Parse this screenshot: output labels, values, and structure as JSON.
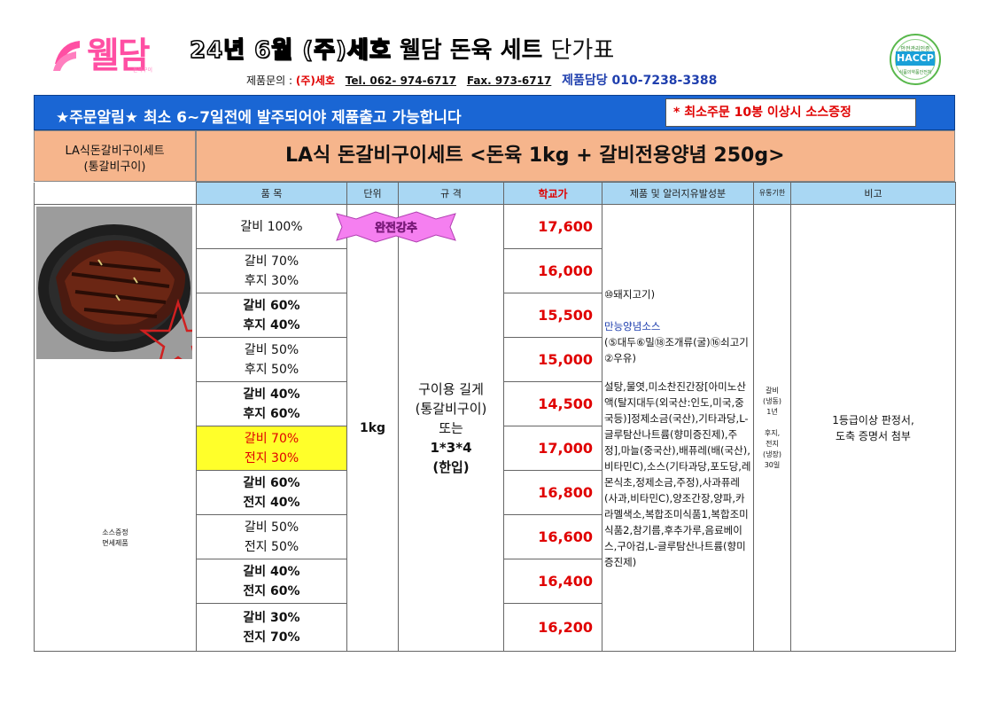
{
  "header": {
    "logo_text": "웰담",
    "logo_sub": "돈육구이",
    "title_brush": "24년 6월 (주)세호",
    "title_main": "웰담 돈육 세트",
    "title_light": "단가표",
    "contact_label": "제품문의 :",
    "contact_company": "(주)세호",
    "contact_tel": "Tel. 062- 974-6717",
    "contact_fax": "Fax. 973-6717",
    "contact_manager": "제품담당  010-7238-3388",
    "haccp_top": "안전관리인증",
    "haccp_label": "HACCP",
    "haccp_bottom": "식품의약품안전처"
  },
  "notice": {
    "text": "★주문알림★ 최소 6~7일전에 발주되어야 제품출고 가능합니다",
    "box": "* 최소주문 10봉 이상시 소스증정"
  },
  "product": {
    "left_line1": "LA식돈갈비구이세트",
    "left_line2": "(통갈비구이)",
    "title": "LA식 돈갈비구이세트 <돈육 1kg + 갈비전용양념 250g>"
  },
  "columns": {
    "item": "품    목",
    "unit": "단위",
    "spec": "규    격",
    "price": "학교가",
    "ingredients": "제품 및 알러지유발성분",
    "expiry": "유통기한",
    "note": "비고"
  },
  "badge": "완전강추",
  "rows": [
    {
      "l1": "갈비 100%",
      "l2": "",
      "price": "17,600"
    },
    {
      "l1": "갈비 70%",
      "l2": "후지 30%",
      "price": "16,000"
    },
    {
      "l1": "갈비 60%",
      "l2": "후지 40%",
      "price": "15,500"
    },
    {
      "l1": "갈비 50%",
      "l2": "후지 50%",
      "price": "15,000"
    },
    {
      "l1": "갈비 40%",
      "l2": "후지 60%",
      "price": "14,500"
    },
    {
      "l1": "갈비 70%",
      "l2": "전지 30%",
      "price": "17,000"
    },
    {
      "l1": "갈비 60%",
      "l2": "전지 40%",
      "price": "16,800"
    },
    {
      "l1": "갈비 50%",
      "l2": "전지 50%",
      "price": "16,600"
    },
    {
      "l1": "갈비 40%",
      "l2": "전지 60%",
      "price": "16,400"
    },
    {
      "l1": "갈비 30%",
      "l2": "전지 70%",
      "price": "16,200"
    }
  ],
  "unit": "1kg",
  "spec": {
    "l1": "구이용 길게",
    "l2": "(통갈비구이)",
    "l3": "또는",
    "l4": "1*3*4",
    "l5": "(한입)"
  },
  "ingredients": {
    "meat": "⑩돼지고기)",
    "sauce_title": "만능양념소스",
    "allergens": "(⑤대두⑥밀⑱조개류(굴)⑯쇠고기②우유)",
    "list": "설탕,물엿,미소찬진간장[아미노산액(탈지대두(외국산:인도,미국,중국등)]정제소금(국산),기타과당,L-글루탐산나트륨(향미증진제),주정],마늘(중국산),배퓨레(배(국산),비타민C),소스(기타과당,포도당,레몬식초,정제소금,주정),사과퓨레(사과,비타민C),양조간장,양파,카라멜색소,복합조미식품1,복합조미식품2,참기름,후추가루,음료베이스,구아검,L-글루탐산나트륨(향미증진제)"
  },
  "expiry": {
    "l1": "갈비",
    "l2": "(냉동)",
    "l3": "1년",
    "l4": "후지,",
    "l5": "전지",
    "l6": "(냉장)",
    "l7": "30일"
  },
  "note": {
    "l1": "1등급이상 판정서,",
    "l2": "도축 증명서 첨부"
  },
  "image_caption": {
    "l1": "소스증정",
    "l2": "면세제품"
  },
  "colors": {
    "notice_bg": "#1a66d4",
    "header_bg": "#f6b58c",
    "col_header_bg": "#a9d7f3",
    "price": "#e00000",
    "highlight": "#ffff2a",
    "logo": "#ff4fa3"
  }
}
